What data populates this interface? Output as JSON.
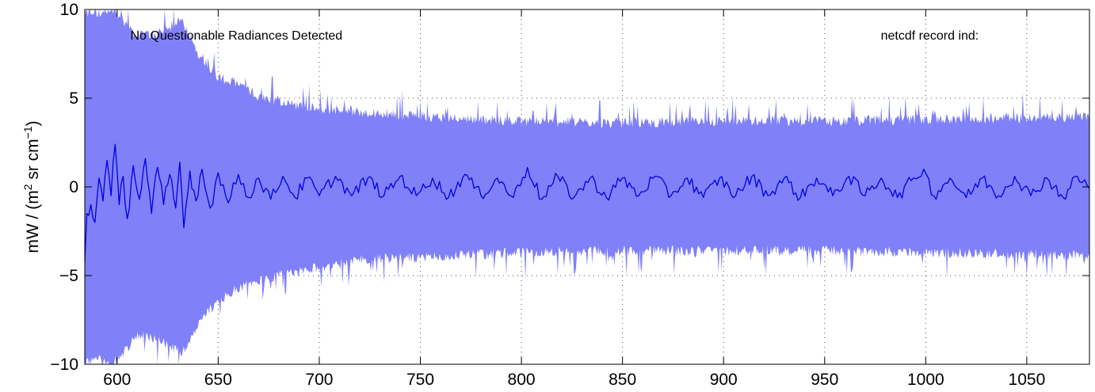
{
  "chart_data": {
    "type": "area",
    "title": "",
    "xlabel": "",
    "ylabel": {
      "prefix": "mW / (m",
      "sup1": "2",
      "middle": " sr cm",
      "sup2": "−1",
      "suffix": ")"
    },
    "xlim": [
      584,
      1081
    ],
    "ylim": [
      -10,
      10
    ],
    "xticks": [
      600,
      650,
      700,
      750,
      800,
      850,
      900,
      950,
      1000,
      1050
    ],
    "yticks": [
      -10,
      -5,
      0,
      5,
      10
    ],
    "ytick_labels": [
      "−10",
      "−5",
      "0",
      "5",
      "10"
    ],
    "grid": true,
    "annotations": [
      {
        "text": "No Questionable Radiances Detected",
        "x": 659,
        "y": 8.3
      },
      {
        "text": "netcdf record ind:",
        "x": 1002,
        "y": 8.3
      }
    ],
    "colors": {
      "band": "#8080f8",
      "line": "#0000e6"
    },
    "series": [
      {
        "kind": "band",
        "envelope": [
          {
            "x": 584,
            "lo": -10,
            "hi": 10
          },
          {
            "x": 600,
            "lo": -10,
            "hi": 10
          },
          {
            "x": 610,
            "lo": -8.5,
            "hi": 8.7
          },
          {
            "x": 620,
            "lo": -8.8,
            "hi": 8.8
          },
          {
            "x": 632,
            "lo": -9.6,
            "hi": 9.6
          },
          {
            "x": 640,
            "lo": -7.9,
            "hi": 7.8
          },
          {
            "x": 650,
            "lo": -6.6,
            "hi": 6.4
          },
          {
            "x": 660,
            "lo": -5.9,
            "hi": 6.0
          },
          {
            "x": 670,
            "lo": -5.5,
            "hi": 5.3
          },
          {
            "x": 680,
            "lo": -5.2,
            "hi": 5.0
          },
          {
            "x": 690,
            "lo": -5.0,
            "hi": 4.8
          },
          {
            "x": 700,
            "lo": -4.7,
            "hi": 4.6
          },
          {
            "x": 720,
            "lo": -4.3,
            "hi": 4.4
          },
          {
            "x": 750,
            "lo": -4.2,
            "hi": 4.2
          },
          {
            "x": 780,
            "lo": -4.0,
            "hi": 4.0
          },
          {
            "x": 800,
            "lo": -3.9,
            "hi": 3.9
          },
          {
            "x": 850,
            "lo": -3.8,
            "hi": 3.8
          },
          {
            "x": 900,
            "lo": -3.8,
            "hi": 3.9
          },
          {
            "x": 950,
            "lo": -3.8,
            "hi": 3.9
          },
          {
            "x": 1000,
            "lo": -3.9,
            "hi": 4.0
          },
          {
            "x": 1050,
            "lo": -4.0,
            "hi": 4.1
          },
          {
            "x": 1081,
            "lo": -4.1,
            "hi": 4.2
          }
        ]
      },
      {
        "kind": "line",
        "points": [
          [
            584,
            -4.2
          ],
          [
            585,
            -1.5
          ],
          [
            587,
            -1.0
          ],
          [
            589,
            -2.0
          ],
          [
            591,
            0.5
          ],
          [
            593,
            -0.8
          ],
          [
            595,
            1.5
          ],
          [
            597,
            -0.5
          ],
          [
            599,
            2.4
          ],
          [
            601,
            -1.0
          ],
          [
            603,
            0.6
          ],
          [
            605,
            -1.8
          ],
          [
            608,
            1.2
          ],
          [
            611,
            -0.7
          ],
          [
            614,
            1.6
          ],
          [
            617,
            -1.5
          ],
          [
            620,
            1.1
          ],
          [
            623,
            -1.0
          ],
          [
            626,
            0.7
          ],
          [
            629,
            -1.2
          ],
          [
            631,
            1.4
          ],
          [
            633,
            -2.3
          ],
          [
            636,
            0.9
          ],
          [
            639,
            -0.8
          ],
          [
            642,
            1.0
          ],
          [
            646,
            -1.2
          ],
          [
            650,
            0.8
          ],
          [
            655,
            -0.9
          ],
          [
            660,
            0.7
          ],
          [
            665,
            -0.6
          ],
          [
            670,
            0.5
          ],
          [
            676,
            -0.7
          ],
          [
            682,
            0.6
          ],
          [
            688,
            -0.6
          ],
          [
            694,
            0.5
          ],
          [
            700,
            -0.5
          ],
          [
            708,
            0.6
          ],
          [
            716,
            -0.5
          ],
          [
            724,
            0.5
          ],
          [
            732,
            -0.5
          ],
          [
            740,
            0.6
          ],
          [
            748,
            -0.5
          ],
          [
            756,
            0.5
          ],
          [
            764,
            -0.6
          ],
          [
            772,
            0.7
          ],
          [
            780,
            -0.5
          ],
          [
            788,
            0.5
          ],
          [
            796,
            -0.6
          ],
          [
            803,
            1.1
          ],
          [
            810,
            -0.7
          ],
          [
            818,
            0.6
          ],
          [
            826,
            -0.6
          ],
          [
            834,
            0.5
          ],
          [
            842,
            -0.6
          ],
          [
            850,
            0.5
          ],
          [
            858,
            -0.5
          ],
          [
            866,
            0.6
          ],
          [
            874,
            -0.5
          ],
          [
            882,
            0.5
          ],
          [
            890,
            -0.6
          ],
          [
            898,
            0.5
          ],
          [
            906,
            -0.5
          ],
          [
            914,
            0.6
          ],
          [
            922,
            -0.5
          ],
          [
            930,
            0.5
          ],
          [
            938,
            -0.6
          ],
          [
            946,
            0.5
          ],
          [
            954,
            -0.5
          ],
          [
            962,
            0.6
          ],
          [
            970,
            -0.5
          ],
          [
            978,
            0.5
          ],
          [
            986,
            -0.6
          ],
          [
            994,
            0.5
          ],
          [
            999,
            1.0
          ],
          [
            1004,
            -0.5
          ],
          [
            1012,
            0.5
          ],
          [
            1020,
            -0.6
          ],
          [
            1028,
            0.5
          ],
          [
            1036,
            -0.5
          ],
          [
            1044,
            0.6
          ],
          [
            1052,
            -0.5
          ],
          [
            1060,
            0.5
          ],
          [
            1068,
            -0.6
          ],
          [
            1075,
            0.6
          ],
          [
            1081,
            -0.1
          ]
        ]
      }
    ]
  }
}
